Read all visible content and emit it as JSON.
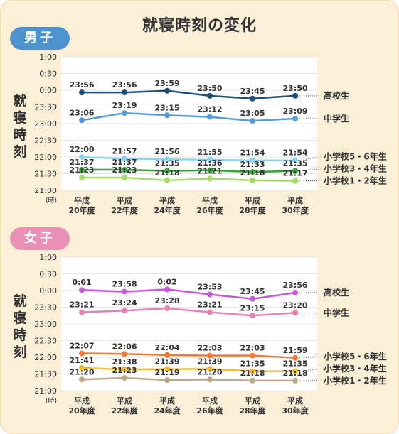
{
  "title": "就寝時刻の変化",
  "y_axis_label": "就寝時刻",
  "y_unit": "(時)",
  "colors": {
    "card_bg": "#fbefd8",
    "male_badge": "#4c93d0",
    "female_badge": "#ea8fb6"
  },
  "chart_data": [
    {
      "type": "line",
      "title": "男子",
      "x": [
        "平成20年度",
        "平成22年度",
        "平成24年度",
        "平成26年度",
        "平成28年度",
        "平成30年度"
      ],
      "x_tick_labels": [
        [
          "平成",
          "20年度"
        ],
        [
          "平成",
          "22年度"
        ],
        [
          "平成",
          "24年度"
        ],
        [
          "平成",
          "26年度"
        ],
        [
          "平成",
          "28年度"
        ],
        [
          "平成",
          "30年度"
        ]
      ],
      "y_ticks": [
        "1:00",
        "0:30",
        "0:00",
        "23:30",
        "23:00",
        "22:30",
        "22:00",
        "21:30",
        "21:00"
      ],
      "ylim": [
        "21:00",
        "1:00"
      ],
      "grid": true,
      "series": [
        {
          "name": "高校生",
          "color": "#1e4f7a",
          "values": [
            "23:56",
            "23:56",
            "23:59",
            "23:50",
            "23:45",
            "23:50"
          ]
        },
        {
          "name": "中学生",
          "color": "#5b9bd5",
          "values": [
            "23:06",
            "23:19",
            "23:15",
            "23:12",
            "23:05",
            "23:09"
          ]
        },
        {
          "name": "小学校5・6年生",
          "color": "#8fd3f2",
          "values": [
            "22:00",
            "21:57",
            "21:56",
            "21:55",
            "21:54",
            "21:54"
          ]
        },
        {
          "name": "小学校3・4年生",
          "color": "#3b9e3b",
          "values": [
            "21:37",
            "21:37",
            "21:35",
            "21:36",
            "21:33",
            "21:35"
          ]
        },
        {
          "name": "小学校1・2年生",
          "color": "#a6d86a",
          "values": [
            "21:23",
            "21:23",
            "21:18",
            "21:21",
            "21:18",
            "21:17"
          ]
        }
      ]
    },
    {
      "type": "line",
      "title": "女子",
      "x": [
        "平成20年度",
        "平成22年度",
        "平成24年度",
        "平成26年度",
        "平成28年度",
        "平成30年度"
      ],
      "x_tick_labels": [
        [
          "平成",
          "20年度"
        ],
        [
          "平成",
          "22年度"
        ],
        [
          "平成",
          "24年度"
        ],
        [
          "平成",
          "26年度"
        ],
        [
          "平成",
          "28年度"
        ],
        [
          "平成",
          "30年度"
        ]
      ],
      "y_ticks": [
        "1:00",
        "0:30",
        "0:00",
        "23:30",
        "23:00",
        "22:30",
        "22:00",
        "21:30",
        "21:00"
      ],
      "ylim": [
        "21:00",
        "1:00"
      ],
      "grid": true,
      "series": [
        {
          "name": "高校生",
          "color": "#c25ad6",
          "values": [
            "0:01",
            "23:58",
            "0:02",
            "23:53",
            "23:45",
            "23:56"
          ]
        },
        {
          "name": "中学生",
          "color": "#e483b0",
          "values": [
            "23:21",
            "23:24",
            "23:28",
            "23:21",
            "23:15",
            "23:20"
          ]
        },
        {
          "name": "小学校5・6年生",
          "color": "#ee7a3a",
          "values": [
            "22:07",
            "22:06",
            "22:04",
            "22:03",
            "22:03",
            "21:59"
          ]
        },
        {
          "name": "小学校3・4年生",
          "color": "#f6bb2a",
          "values": [
            "21:41",
            "21:38",
            "21:39",
            "21:39",
            "21:35",
            "21:35"
          ]
        },
        {
          "name": "小学校1・2年生",
          "color": "#b9a98a",
          "values": [
            "21:20",
            "21:23",
            "21:19",
            "21:20",
            "21:18",
            "21:18"
          ]
        }
      ]
    }
  ]
}
